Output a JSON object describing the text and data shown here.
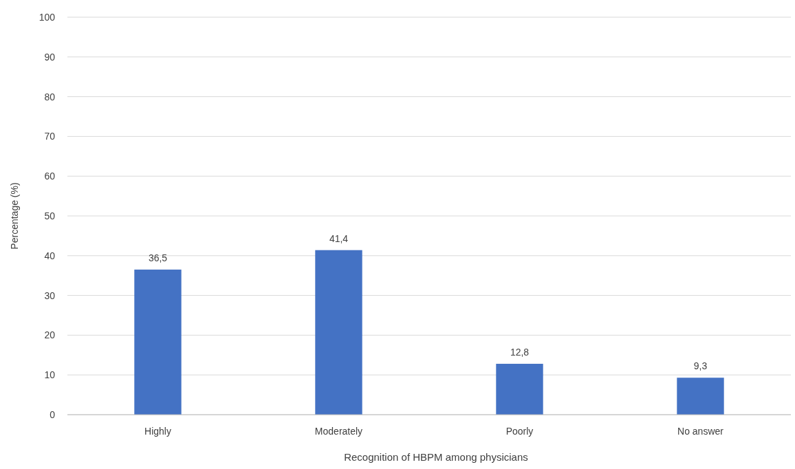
{
  "chart_data": {
    "type": "bar",
    "xlabel": "Recognition of HBPM among physicians",
    "ylabel": "Percentage (%)",
    "categories": [
      "Highly",
      "Moderately",
      "Poorly",
      "No answer"
    ],
    "values": [
      36.5,
      41.4,
      12.8,
      9.3
    ],
    "value_labels": [
      "36,5",
      "41,4",
      "12,8",
      "9,3"
    ],
    "color": "#4472c4",
    "ylim": [
      0,
      100
    ],
    "yticks": [
      0,
      10,
      20,
      30,
      40,
      50,
      60,
      70,
      80,
      90,
      100
    ],
    "grid": "y"
  }
}
